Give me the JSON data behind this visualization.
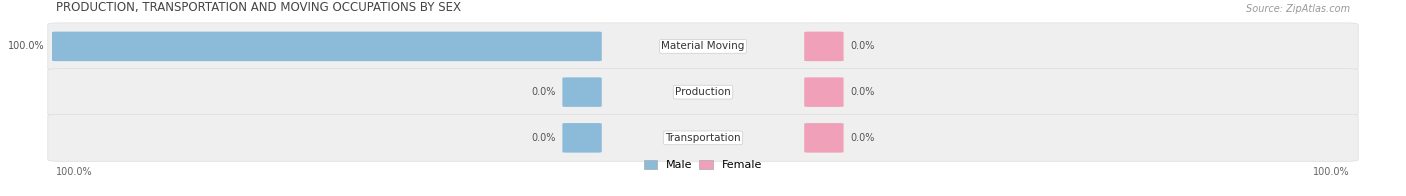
{
  "title": "PRODUCTION, TRANSPORTATION AND MOVING OCCUPATIONS BY SEX",
  "source": "Source: ZipAtlas.com",
  "categories": [
    "Material Moving",
    "Production",
    "Transportation"
  ],
  "male_values": [
    100.0,
    0.0,
    0.0
  ],
  "female_values": [
    0.0,
    0.0,
    0.0
  ],
  "male_color": "#8BBBD9",
  "female_color": "#F0A0B8",
  "row_bg_color": "#EFEFEF",
  "row_edge_color": "#DDDDDD",
  "title_fontsize": 8.5,
  "source_fontsize": 7,
  "bar_label_fontsize": 7,
  "cat_label_fontsize": 7.5,
  "legend_fontsize": 8,
  "axis_label_fontsize": 7,
  "figsize": [
    14.06,
    1.96
  ],
  "dpi": 100
}
